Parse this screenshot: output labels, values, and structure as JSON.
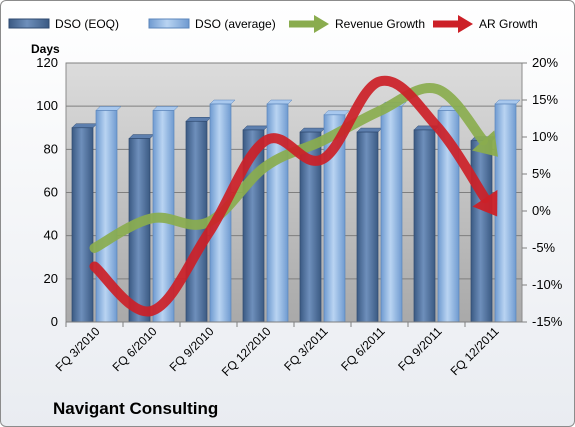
{
  "chart_data": {
    "type": "bar",
    "categories": [
      "FQ 3/2010",
      "FQ 6/2010",
      "FQ 9/2010",
      "FQ 12/2010",
      "FQ 3/2011",
      "FQ 6/2011",
      "FQ 9/2011",
      "FQ 12/2011"
    ],
    "series": [
      {
        "name": "DSO (EOQ)",
        "type": "bar",
        "axis": "left",
        "color": "#4f6f99",
        "values": [
          90,
          85,
          93,
          89,
          88,
          88,
          89,
          84
        ]
      },
      {
        "name": "DSO (average)",
        "type": "bar",
        "axis": "left",
        "color": "#8fb4df",
        "values": [
          98,
          98,
          101,
          101,
          96,
          100,
          98,
          101
        ]
      },
      {
        "name": "Revenue Growth",
        "type": "line-arrow",
        "axis": "right",
        "color": "#8aac4e",
        "values": [
          -5,
          -1,
          -1.5,
          6,
          9.5,
          13.5,
          16.5,
          8
        ]
      },
      {
        "name": "AR Growth",
        "type": "line-arrow",
        "axis": "right",
        "color": "#cc2027",
        "values": [
          -7.5,
          -13.5,
          -3,
          9.5,
          7,
          17.5,
          11.5,
          0
        ]
      }
    ],
    "yleft": {
      "label": "Days",
      "ticks": [
        "0",
        "20",
        "40",
        "60",
        "80",
        "100",
        "120"
      ],
      "lim": [
        0,
        120
      ]
    },
    "yright": {
      "ticks": [
        "-15%",
        "-10%",
        "-5%",
        "0%",
        "5%",
        "10%",
        "15%",
        "20%"
      ],
      "lim": [
        -15,
        20
      ]
    },
    "legend": "top",
    "grid": true,
    "plot_background": "#c0c0c0"
  },
  "footer": {
    "company": "Navigant Consulting"
  }
}
